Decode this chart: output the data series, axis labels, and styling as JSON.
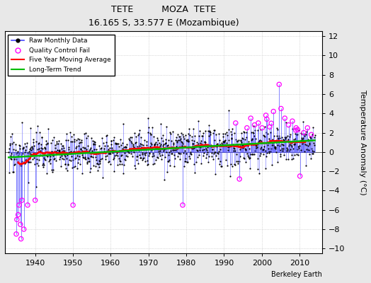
{
  "title_line1": "TETE          MOZA  TETE",
  "title_line2": "16.165 S, 33.577 E (Mozambique)",
  "ylabel": "Temperature Anomaly (°C)",
  "xlabel_text": "Berkeley Earth",
  "ylim": [
    -10.5,
    12.5
  ],
  "xlim": [
    1932,
    2016
  ],
  "yticks": [
    -10,
    -8,
    -6,
    -4,
    -2,
    0,
    2,
    4,
    6,
    8,
    10,
    12
  ],
  "xticks": [
    1940,
    1950,
    1960,
    1970,
    1980,
    1990,
    2000,
    2010
  ],
  "background_color": "#e8e8e8",
  "plot_bg_color": "#ffffff",
  "stem_color": "#4444ff",
  "dot_color": "#000000",
  "qc_fail_color": "#ff00ff",
  "moving_avg_color": "#ff0000",
  "trend_color": "#00bb00",
  "seed": 17
}
